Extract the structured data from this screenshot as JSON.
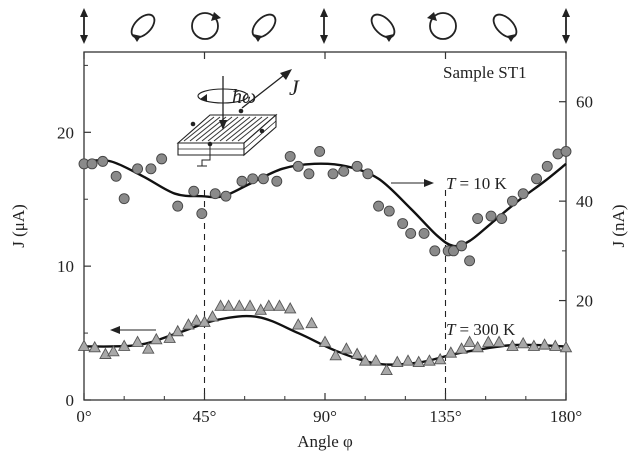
{
  "chart_data": {
    "type": "scatter",
    "title": "",
    "sample_label": "Sample ST1",
    "xlabel": "Angle φ",
    "xlim": [
      0,
      180
    ],
    "x_ticks": [
      {
        "value": 0,
        "label": "0°"
      },
      {
        "value": 45,
        "label": "45°"
      },
      {
        "value": 90,
        "label": "90°"
      },
      {
        "value": 135,
        "label": "135°"
      },
      {
        "value": 180,
        "label": "180°"
      }
    ],
    "ylabel_left": "J (μA)",
    "ylim_left": [
      0,
      26
    ],
    "y_ticks_left": [
      {
        "value": 0,
        "label": "0"
      },
      {
        "value": 10,
        "label": "10"
      },
      {
        "value": 20,
        "label": "20"
      }
    ],
    "ylabel_right": "J (nA)",
    "ylim_right": [
      0,
      70
    ],
    "y_ticks_right": [
      {
        "value": 20,
        "label": "20"
      },
      {
        "value": 40,
        "label": "40"
      },
      {
        "value": 60,
        "label": "60"
      }
    ],
    "guide_lines_x": [
      45,
      135
    ],
    "grid": false,
    "inset_labels": {
      "photon": "ħω",
      "current": "J"
    },
    "polarization_states": [
      "vertical-arrow",
      "ellipse-cw",
      "circle-cw",
      "ellipse-cw",
      "vertical-arrow",
      "ellipse-ccw",
      "circle-ccw",
      "ellipse-ccw",
      "vertical-arrow"
    ],
    "series": [
      {
        "name": "T = 10 K",
        "label_prefix": "T",
        "label_value": "= 10 K",
        "marker": "circle",
        "axis": "right",
        "x": [
          0,
          3,
          7,
          12,
          15,
          20,
          25,
          29,
          35,
          41,
          44,
          49,
          53,
          59,
          63,
          67,
          72,
          77,
          80,
          84,
          88,
          93,
          97,
          102,
          106,
          110,
          114,
          119,
          122,
          127,
          131,
          136,
          138,
          141,
          144,
          147,
          152,
          156,
          160,
          164,
          169,
          173,
          177,
          180
        ],
        "y": [
          47.5,
          47.5,
          48,
          45,
          40.5,
          46.5,
          46.5,
          48.5,
          39,
          42,
          37.5,
          41.5,
          41,
          44,
          44.5,
          44.5,
          44,
          49,
          47,
          45.5,
          50,
          45.5,
          46,
          47,
          45.5,
          39,
          38,
          35.5,
          33.5,
          33.5,
          30,
          30,
          30,
          31,
          28,
          36.5,
          37,
          36.5,
          40,
          41.5,
          44.5,
          47,
          49.5,
          50
        ],
        "fit": [
          [
            0,
            48
          ],
          [
            10,
            48
          ],
          [
            22,
            45
          ],
          [
            34,
            41.5
          ],
          [
            44,
            41
          ],
          [
            52,
            41
          ],
          [
            62,
            43.5
          ],
          [
            74,
            46.5
          ],
          [
            86,
            47.5
          ],
          [
            98,
            47
          ],
          [
            110,
            44.5
          ],
          [
            122,
            38.5
          ],
          [
            132,
            33
          ],
          [
            138,
            31
          ],
          [
            144,
            32
          ],
          [
            152,
            35.5
          ],
          [
            162,
            40
          ],
          [
            172,
            44
          ],
          [
            180,
            47.5
          ]
        ]
      },
      {
        "name": "T = 300 K",
        "label_prefix": "T",
        "label_value": "= 300 K",
        "marker": "triangle",
        "axis": "left",
        "x": [
          0,
          4,
          8,
          11,
          15,
          20,
          24,
          27,
          32,
          35,
          39,
          42,
          45,
          48,
          51,
          54,
          58,
          62,
          66,
          69,
          73,
          77,
          80,
          85,
          90,
          94,
          98,
          102,
          105,
          109,
          113,
          117,
          121,
          125,
          129,
          133,
          137,
          141,
          144,
          147,
          151,
          155,
          160,
          164,
          168,
          172,
          176,
          180
        ],
        "y": [
          4,
          3.9,
          3.4,
          3.6,
          4,
          4.3,
          3.8,
          4.5,
          4.6,
          5.1,
          5.6,
          5.9,
          5.8,
          6.2,
          7,
          7,
          7,
          7,
          6.7,
          7,
          7,
          6.8,
          5.6,
          5.7,
          4.3,
          3.3,
          3.8,
          3.4,
          2.9,
          2.9,
          2.2,
          2.8,
          2.9,
          2.8,
          2.9,
          3,
          3.5,
          3.8,
          4.3,
          3.9,
          4.3,
          4.3,
          4,
          4.2,
          4,
          4.1,
          4,
          3.9
        ],
        "fit": [
          [
            0,
            4
          ],
          [
            20,
            4.1
          ],
          [
            35,
            5
          ],
          [
            50,
            6
          ],
          [
            65,
            6.2
          ],
          [
            80,
            5
          ],
          [
            95,
            3.6
          ],
          [
            110,
            2.7
          ],
          [
            125,
            2.8
          ],
          [
            140,
            3.5
          ],
          [
            160,
            4.1
          ],
          [
            180,
            4
          ]
        ]
      }
    ]
  }
}
